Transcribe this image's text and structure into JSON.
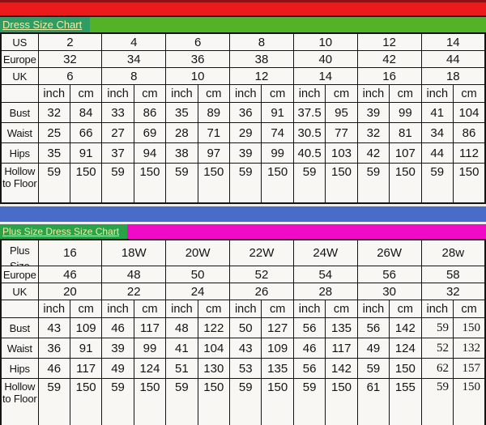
{
  "standard_chart": {
    "title": "Dress Size Chart",
    "data_columns": 14,
    "rows": [
      {
        "label": "US",
        "cls": "size-row",
        "span": 2,
        "cells": [
          "2",
          "4",
          "6",
          "8",
          "10",
          "12",
          "14"
        ]
      },
      {
        "label": "Europe",
        "cls": "size-row",
        "span": 2,
        "cells": [
          "32",
          "34",
          "36",
          "38",
          "40",
          "42",
          "44"
        ]
      },
      {
        "label": "UK",
        "cls": "size-row",
        "span": 2,
        "cells": [
          "6",
          "8",
          "10",
          "12",
          "14",
          "16",
          "18"
        ]
      },
      {
        "label": "",
        "cls": "unit-row",
        "cells": [
          "inch",
          "cm",
          "inch",
          "cm",
          "inch",
          "cm",
          "inch",
          "cm",
          "inch",
          "cm",
          "inch",
          "cm",
          "inch",
          "cm"
        ]
      },
      {
        "label": "Bust",
        "cls": "measure-row",
        "cells": [
          "32",
          "84",
          "33",
          "86",
          "35",
          "89",
          "36",
          "91",
          "37.5",
          "95",
          "39",
          "99",
          "41",
          "104"
        ]
      },
      {
        "label": "Waist",
        "cls": "measure-row",
        "cells": [
          "25",
          "66",
          "27",
          "69",
          "28",
          "71",
          "29",
          "74",
          "30.5",
          "77",
          "32",
          "81",
          "34",
          "86"
        ]
      },
      {
        "label": "Hips",
        "cls": "measure-row",
        "cells": [
          "35",
          "91",
          "37",
          "94",
          "38",
          "97",
          "39",
          "99",
          "40.5",
          "103",
          "42",
          "107",
          "44",
          "112"
        ]
      },
      {
        "label": "Hollow to Floor",
        "cls": "hollow-row",
        "cells": [
          "59",
          "150",
          "59",
          "150",
          "59",
          "150",
          "59",
          "150",
          "59",
          "150",
          "59",
          "150",
          "59",
          "150"
        ]
      }
    ]
  },
  "plus_chart": {
    "title": "Plus Size Dress Size Chart",
    "data_columns": 14,
    "rows": [
      {
        "label": "Plus Size",
        "label_cls": "clip2",
        "cls": "plus-size-row",
        "span": 2,
        "cells": [
          "16",
          "18W",
          "20W",
          "22W",
          "24W",
          "26W",
          "28w"
        ]
      },
      {
        "label": "Europe",
        "cls": "size-row",
        "span": 2,
        "cells": [
          "46",
          "48",
          "50",
          "52",
          "54",
          "56",
          "58"
        ]
      },
      {
        "label": "UK",
        "cls": "size-row",
        "span": 2,
        "cells": [
          "20",
          "22",
          "24",
          "26",
          "28",
          "30",
          "32"
        ]
      },
      {
        "label": "",
        "cls": "unit-row",
        "cells": [
          "inch",
          "cm",
          "inch",
          "cm",
          "inch",
          "cm",
          "inch",
          "cm",
          "inch",
          "cm",
          "inch",
          "cm",
          "inch",
          "cm"
        ]
      },
      {
        "label": "Bust",
        "cls": "measure-row",
        "tail_cls": "serif",
        "cells": [
          "43",
          "109",
          "46",
          "117",
          "48",
          "122",
          "50",
          "127",
          "56",
          "135",
          "56",
          "142",
          "59",
          "150"
        ]
      },
      {
        "label": "Waist",
        "cls": "measure-row",
        "tail_cls": "serif",
        "cells": [
          "36",
          "91",
          "39",
          "99",
          "41",
          "104",
          "43",
          "109",
          "46",
          "117",
          "49",
          "124",
          "52",
          "132"
        ]
      },
      {
        "label": "Hips",
        "cls": "measure-row",
        "tail_cls": "serif",
        "cells": [
          "46",
          "117",
          "49",
          "124",
          "51",
          "130",
          "53",
          "135",
          "56",
          "142",
          "59",
          "150",
          "62",
          "157"
        ]
      },
      {
        "label": "Hollow to Floor",
        "cls": "hollow-row hollow2",
        "tail_cls": "serif bottom",
        "cells": [
          "59",
          "150",
          "59",
          "150",
          "59",
          "150",
          "59",
          "150",
          "59",
          "150",
          "61",
          "155",
          "59",
          "150"
        ]
      }
    ]
  },
  "colors": {
    "top_banner_red": "#ec1b1b",
    "title_bar_green": "#54b226",
    "title_box_teal": "#2e9c63",
    "divider_blue": "#4a6cc9",
    "plus_title_bar_magenta": "#f00cc6",
    "plus_title_box_green": "#2aa24a",
    "title_text_yellow": "#f0eea2",
    "table_background": "#f8f7f3",
    "border_black": "#141414"
  },
  "chart_data": [
    {
      "type": "table",
      "title": "Dress Size Chart",
      "size_systems": {
        "US": [
          "2",
          "4",
          "6",
          "8",
          "10",
          "12",
          "14"
        ],
        "Europe": [
          "32",
          "34",
          "36",
          "38",
          "40",
          "42",
          "44"
        ],
        "UK": [
          "6",
          "8",
          "10",
          "12",
          "14",
          "16",
          "18"
        ]
      },
      "units": [
        "inch",
        "cm"
      ],
      "measurements": {
        "Bust": {
          "inch": [
            32,
            33,
            35,
            36,
            37.5,
            39,
            41
          ],
          "cm": [
            84,
            86,
            89,
            91,
            95,
            99,
            104
          ]
        },
        "Waist": {
          "inch": [
            25,
            27,
            28,
            29,
            30.5,
            32,
            34
          ],
          "cm": [
            66,
            69,
            71,
            74,
            77,
            81,
            86
          ]
        },
        "Hips": {
          "inch": [
            35,
            37,
            38,
            39,
            40.5,
            42,
            44
          ],
          "cm": [
            91,
            94,
            97,
            99,
            103,
            107,
            112
          ]
        },
        "Hollow to Floor": {
          "inch": [
            59,
            59,
            59,
            59,
            59,
            59,
            59
          ],
          "cm": [
            150,
            150,
            150,
            150,
            150,
            150,
            150
          ]
        }
      }
    },
    {
      "type": "table",
      "title": "Plus Size Dress Size Chart",
      "size_systems": {
        "Plus Size": [
          "16",
          "18W",
          "20W",
          "22W",
          "24W",
          "26W",
          "28w"
        ],
        "Europe": [
          "46",
          "48",
          "50",
          "52",
          "54",
          "56",
          "58"
        ],
        "UK": [
          "20",
          "22",
          "24",
          "26",
          "28",
          "30",
          "32"
        ]
      },
      "units": [
        "inch",
        "cm"
      ],
      "measurements": {
        "Bust": {
          "inch": [
            43,
            46,
            48,
            50,
            56,
            56,
            59
          ],
          "cm": [
            109,
            117,
            122,
            127,
            135,
            142,
            150
          ]
        },
        "Waist": {
          "inch": [
            36,
            39,
            41,
            43,
            46,
            49,
            52
          ],
          "cm": [
            91,
            99,
            104,
            109,
            117,
            124,
            132
          ]
        },
        "Hips": {
          "inch": [
            46,
            49,
            51,
            53,
            56,
            59,
            62
          ],
          "cm": [
            117,
            124,
            130,
            135,
            142,
            150,
            157
          ]
        },
        "Hollow to Floor": {
          "inch": [
            59,
            59,
            59,
            59,
            59,
            61,
            59
          ],
          "cm": [
            150,
            150,
            150,
            150,
            150,
            155,
            150
          ]
        }
      }
    }
  ]
}
